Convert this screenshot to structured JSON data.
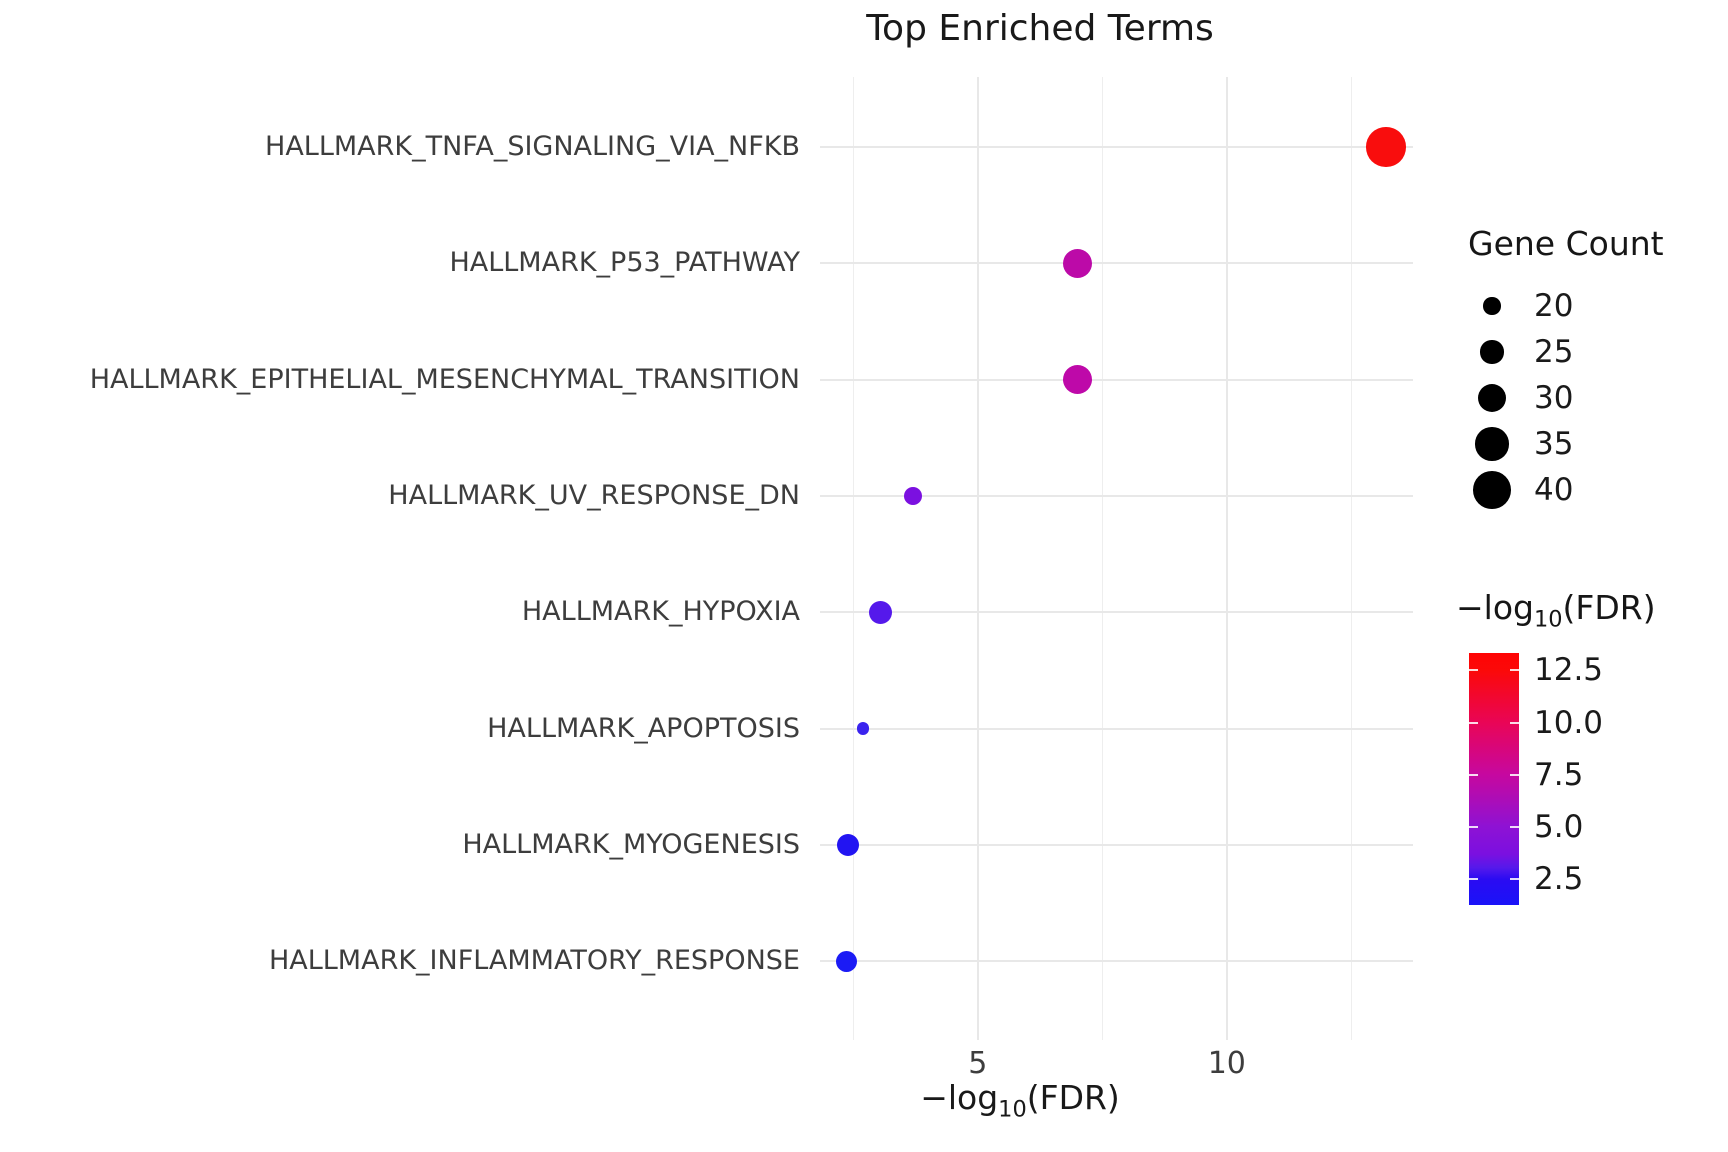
{
  "title": "Top Enriched Terms",
  "chart_data": {
    "type": "scatter",
    "title": "Top Enriched Terms",
    "background": "#FFFFFF",
    "gridline_color": "#E8E8E8",
    "x_axis": {
      "label_pre": "−log",
      "label_sub": "10",
      "label_post": "(FDR)",
      "major_ticks": [
        5,
        10
      ],
      "major_tick_labels": [
        "5",
        "10"
      ],
      "minor_ticks": [
        2.5,
        7.5,
        12.5
      ],
      "range": [
        1.83,
        13.74
      ]
    },
    "y_categories": [
      "HALLMARK_TNFA_SIGNALING_VIA_NFKB",
      "HALLMARK_P53_PATHWAY",
      "HALLMARK_EPITHELIAL_MESENCHYMAL_TRANSITION",
      "HALLMARK_UV_RESPONSE_DN",
      "HALLMARK_HYPOXIA",
      "HALLMARK_APOPTOSIS",
      "HALLMARK_MYOGENESIS",
      "HALLMARK_INFLAMMATORY_RESPONSE"
    ],
    "points": [
      {
        "term": "HALLMARK_TNFA_SIGNALING_VIA_NFKB",
        "neg_log10_fdr": 13.2,
        "gene_count": 42,
        "color": "#F90D0D"
      },
      {
        "term": "HALLMARK_P53_PATHWAY",
        "neg_log10_fdr": 7.0,
        "gene_count": 31,
        "color": "#BC0AA8"
      },
      {
        "term": "HALLMARK_EPITHELIAL_MESENCHYMAL_TRANSITION",
        "neg_log10_fdr": 7.0,
        "gene_count": 31,
        "color": "#BE09A9"
      },
      {
        "term": "HALLMARK_UV_RESPONSE_DN",
        "neg_log10_fdr": 3.7,
        "gene_count": 21,
        "color": "#7B10E0"
      },
      {
        "term": "HALLMARK_HYPOXIA",
        "neg_log10_fdr": 3.05,
        "gene_count": 25,
        "color": "#5519EB"
      },
      {
        "term": "HALLMARK_APOPTOSIS",
        "neg_log10_fdr": 2.7,
        "gene_count": 16,
        "color": "#3A23EE"
      },
      {
        "term": "HALLMARK_MYOGENESIS",
        "neg_log10_fdr": 2.4,
        "gene_count": 24,
        "color": "#2214F2"
      },
      {
        "term": "HALLMARK_INFLAMMATORY_RESPONSE",
        "neg_log10_fdr": 2.37,
        "gene_count": 23,
        "color": "#1B1BF5"
      }
    ],
    "size_legend": {
      "title": "Gene Count",
      "values": [
        20,
        25,
        30,
        35,
        40
      ],
      "dot_color": "#000000"
    },
    "color_legend": {
      "label_pre": "−log",
      "label_sub": "10",
      "label_post": "(FDR)",
      "tick_labels": [
        "12.5",
        "10.0",
        "7.5",
        "5.0",
        "2.5"
      ],
      "tick_values": [
        12.5,
        10.0,
        7.5,
        5.0,
        2.5
      ],
      "bar_range": [
        1.26,
        13.33
      ],
      "gradient_stops": [
        {
          "v": 1.26,
          "color": "#1A13F8"
        },
        {
          "v": 2.5,
          "color": "#2B0BF2"
        },
        {
          "v": 3.05,
          "color": "#5519EB"
        },
        {
          "v": 3.7,
          "color": "#7B10E0"
        },
        {
          "v": 5.0,
          "color": "#8E12D4"
        },
        {
          "v": 7.0,
          "color": "#BC0AA8"
        },
        {
          "v": 7.5,
          "color": "#C608A0"
        },
        {
          "v": 10.0,
          "color": "#E90556"
        },
        {
          "v": 12.5,
          "color": "#FB0909"
        },
        {
          "v": 13.33,
          "color": "#FF0404"
        }
      ]
    }
  }
}
